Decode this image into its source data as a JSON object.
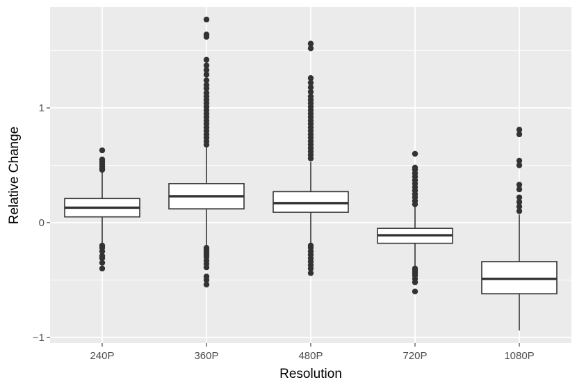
{
  "chart_data": {
    "type": "boxplot",
    "title": "",
    "xlabel": "Resolution",
    "ylabel": "Relative Change",
    "ylim": [
      -1.05,
      1.88
    ],
    "y_ticks": [
      -1,
      0,
      1
    ],
    "y_tick_labels": [
      "−1",
      "0",
      "1"
    ],
    "grid": true,
    "categories": [
      "240P",
      "360P",
      "480P",
      "720P",
      "1080P"
    ],
    "boxes": [
      {
        "category": "240P",
        "whisker_low": -0.18,
        "q1": 0.05,
        "median": 0.13,
        "q3": 0.21,
        "whisker_high": 0.44,
        "outliers": [
          0.63,
          0.55,
          0.53,
          0.51,
          0.49,
          0.47,
          0.46,
          -0.2,
          -0.22,
          -0.25,
          -0.29,
          -0.31,
          -0.35,
          -0.4
        ]
      },
      {
        "category": "360P",
        "whisker_low": -0.2,
        "q1": 0.12,
        "median": 0.23,
        "q3": 0.34,
        "whisker_high": 0.66,
        "outliers": [
          1.77,
          1.64,
          1.62,
          1.42,
          1.37,
          1.33,
          1.29,
          1.24,
          1.2,
          1.17,
          1.13,
          1.1,
          1.07,
          1.04,
          1.01,
          0.98,
          0.95,
          0.92,
          0.89,
          0.86,
          0.83,
          0.8,
          0.77,
          0.74,
          0.71,
          0.68,
          -0.22,
          -0.24,
          -0.26,
          -0.28,
          -0.3,
          -0.33,
          -0.36,
          -0.39,
          -0.47,
          -0.5,
          -0.54
        ]
      },
      {
        "category": "480P",
        "whisker_low": -0.19,
        "q1": 0.09,
        "median": 0.17,
        "q3": 0.27,
        "whisker_high": 0.53,
        "outliers": [
          1.56,
          1.52,
          1.26,
          1.22,
          1.18,
          1.14,
          1.1,
          1.07,
          1.04,
          1.01,
          0.98,
          0.95,
          0.92,
          0.89,
          0.86,
          0.83,
          0.8,
          0.77,
          0.74,
          0.71,
          0.68,
          0.65,
          0.62,
          0.59,
          0.56,
          -0.2,
          -0.22,
          -0.25,
          -0.28,
          -0.31,
          -0.34,
          -0.37,
          -0.4,
          -0.44
        ]
      },
      {
        "category": "720P",
        "whisker_low": -0.38,
        "q1": -0.18,
        "median": -0.11,
        "q3": -0.05,
        "whisker_high": 0.14,
        "outliers": [
          0.6,
          0.48,
          0.46,
          0.43,
          0.4,
          0.37,
          0.34,
          0.31,
          0.28,
          0.25,
          0.22,
          0.19,
          0.16,
          -0.4,
          -0.42,
          -0.44,
          -0.46,
          -0.49,
          -0.52,
          -0.6
        ]
      },
      {
        "category": "1080P",
        "whisker_low": -0.94,
        "q1": -0.62,
        "median": -0.49,
        "q3": -0.34,
        "whisker_high": 0.07,
        "outliers": [
          0.81,
          0.77,
          0.54,
          0.5,
          0.33,
          0.29,
          0.22,
          0.18,
          0.14,
          0.1
        ]
      }
    ]
  }
}
